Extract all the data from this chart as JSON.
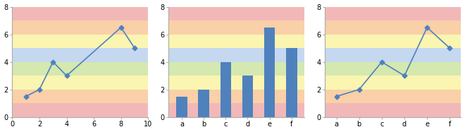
{
  "bands": [
    {
      "ymin": 0,
      "ymax": 1,
      "color": "#f2b8b8"
    },
    {
      "ymin": 1,
      "ymax": 2,
      "color": "#f9d0a8"
    },
    {
      "ymin": 2,
      "ymax": 3,
      "color": "#faf5b0"
    },
    {
      "ymin": 3,
      "ymax": 4,
      "color": "#d4e8b0"
    },
    {
      "ymin": 4,
      "ymax": 5,
      "color": "#c5d8f0"
    },
    {
      "ymin": 5,
      "ymax": 6,
      "color": "#faf5b0"
    },
    {
      "ymin": 6,
      "ymax": 7,
      "color": "#f9d0a8"
    },
    {
      "ymin": 7,
      "ymax": 8,
      "color": "#f2b8b8"
    }
  ],
  "ylim": [
    0,
    8
  ],
  "yticks": [
    0,
    2,
    4,
    6,
    8
  ],
  "chart1": {
    "x": [
      1,
      2,
      3,
      4,
      8,
      9
    ],
    "y": [
      1.5,
      2.0,
      4.0,
      3.0,
      6.5,
      5.0
    ],
    "xlim": [
      0,
      10
    ],
    "xticks": [
      0,
      2,
      4,
      6,
      8,
      10
    ]
  },
  "chart2": {
    "categories": [
      "a",
      "b",
      "c",
      "d",
      "e",
      "f"
    ],
    "values": [
      1.5,
      2.0,
      4.0,
      3.0,
      6.5,
      5.0
    ]
  },
  "chart3": {
    "categories": [
      "a",
      "b",
      "c",
      "d",
      "e",
      "f"
    ],
    "y": [
      1.5,
      2.0,
      4.0,
      3.0,
      6.5,
      5.0
    ]
  },
  "line_color": "#4f81bd",
  "bar_color": "#4f81bd",
  "marker": "D",
  "marker_size": 3.5,
  "line_width": 1.2,
  "tick_fontsize": 7,
  "background_color": "#ffffff",
  "spine_color": "#aaaaaa",
  "bar_width": 0.5
}
